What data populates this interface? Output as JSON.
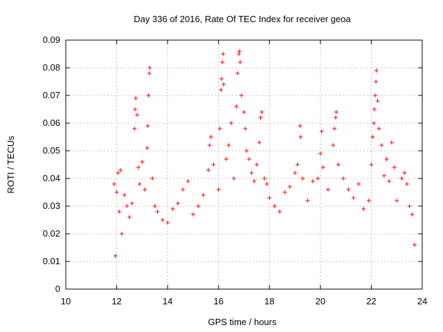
{
  "chart_data": {
    "type": "scatter",
    "title": "Day 336 of 2016, Rate Of TEC Index for receiver geoa",
    "xlabel": "GPS time / hours",
    "ylabel": "ROTI / TECUs",
    "xlim": [
      10,
      24
    ],
    "ylim": [
      0,
      0.09
    ],
    "xticks": [
      "10",
      "12",
      "14",
      "16",
      "18",
      "20",
      "22",
      "24"
    ],
    "yticks": [
      "0",
      "0.01",
      "0.02",
      "0.03",
      "0.04",
      "0.05",
      "0.06",
      "0.07",
      "0.08",
      "0.09"
    ],
    "grid": true,
    "marker": "+",
    "color": "#ff0000",
    "series": [
      {
        "points": [
          [
            11.9,
            0.038
          ],
          [
            11.95,
            0.012
          ],
          [
            12.0,
            0.035
          ],
          [
            12.05,
            0.042
          ],
          [
            12.1,
            0.028
          ],
          [
            12.15,
            0.043
          ],
          [
            12.2,
            0.02
          ],
          [
            12.3,
            0.034
          ],
          [
            12.4,
            0.03
          ],
          [
            12.5,
            0.026
          ],
          [
            12.6,
            0.031
          ],
          [
            12.7,
            0.058
          ],
          [
            12.72,
            0.065
          ],
          [
            12.75,
            0.069
          ],
          [
            12.8,
            0.063
          ],
          [
            12.85,
            0.044
          ],
          [
            12.9,
            0.038
          ],
          [
            13.0,
            0.046
          ],
          [
            13.1,
            0.036
          ],
          [
            13.2,
            0.051
          ],
          [
            13.22,
            0.059
          ],
          [
            13.25,
            0.07
          ],
          [
            13.28,
            0.078
          ],
          [
            13.3,
            0.08
          ],
          [
            13.4,
            0.04
          ],
          [
            13.5,
            0.03
          ],
          [
            13.6,
            0.028
          ],
          [
            13.8,
            0.025
          ],
          [
            14.0,
            0.024
          ],
          [
            14.2,
            0.029
          ],
          [
            14.4,
            0.031
          ],
          [
            14.6,
            0.036
          ],
          [
            14.8,
            0.039
          ],
          [
            15.0,
            0.027
          ],
          [
            15.2,
            0.03
          ],
          [
            15.4,
            0.034
          ],
          [
            15.6,
            0.043
          ],
          [
            15.65,
            0.052
          ],
          [
            15.7,
            0.055
          ],
          [
            15.8,
            0.045
          ],
          [
            16.0,
            0.036
          ],
          [
            16.05,
            0.058
          ],
          [
            16.1,
            0.072
          ],
          [
            16.12,
            0.076
          ],
          [
            16.15,
            0.082
          ],
          [
            16.18,
            0.085
          ],
          [
            16.2,
            0.074
          ],
          [
            16.3,
            0.047
          ],
          [
            16.4,
            0.052
          ],
          [
            16.5,
            0.06
          ],
          [
            16.6,
            0.04
          ],
          [
            16.7,
            0.066
          ],
          [
            16.75,
            0.078
          ],
          [
            16.8,
            0.085
          ],
          [
            16.82,
            0.086
          ],
          [
            16.85,
            0.082
          ],
          [
            16.9,
            0.07
          ],
          [
            17.0,
            0.064
          ],
          [
            17.05,
            0.058
          ],
          [
            17.1,
            0.05
          ],
          [
            17.2,
            0.047
          ],
          [
            17.3,
            0.042
          ],
          [
            17.4,
            0.039
          ],
          [
            17.5,
            0.045
          ],
          [
            17.6,
            0.053
          ],
          [
            17.65,
            0.062
          ],
          [
            17.7,
            0.064
          ],
          [
            17.8,
            0.04
          ],
          [
            17.9,
            0.038
          ],
          [
            18.0,
            0.033
          ],
          [
            18.2,
            0.03
          ],
          [
            18.4,
            0.028
          ],
          [
            18.6,
            0.035
          ],
          [
            18.8,
            0.037
          ],
          [
            19.0,
            0.042
          ],
          [
            19.1,
            0.045
          ],
          [
            19.2,
            0.059
          ],
          [
            19.22,
            0.055
          ],
          [
            19.3,
            0.04
          ],
          [
            19.5,
            0.032
          ],
          [
            19.7,
            0.039
          ],
          [
            19.9,
            0.04
          ],
          [
            20.0,
            0.049
          ],
          [
            20.05,
            0.057
          ],
          [
            20.1,
            0.044
          ],
          [
            20.3,
            0.036
          ],
          [
            20.5,
            0.052
          ],
          [
            20.55,
            0.058
          ],
          [
            20.6,
            0.062
          ],
          [
            20.62,
            0.064
          ],
          [
            20.7,
            0.045
          ],
          [
            20.9,
            0.04
          ],
          [
            21.1,
            0.036
          ],
          [
            21.3,
            0.033
          ],
          [
            21.5,
            0.038
          ],
          [
            21.7,
            0.029
          ],
          [
            21.9,
            0.032
          ],
          [
            22.0,
            0.045
          ],
          [
            22.05,
            0.055
          ],
          [
            22.1,
            0.06
          ],
          [
            22.12,
            0.065
          ],
          [
            22.15,
            0.07
          ],
          [
            22.18,
            0.075
          ],
          [
            22.2,
            0.079
          ],
          [
            22.25,
            0.068
          ],
          [
            22.3,
            0.058
          ],
          [
            22.4,
            0.052
          ],
          [
            22.5,
            0.041
          ],
          [
            22.6,
            0.047
          ],
          [
            22.7,
            0.039
          ],
          [
            22.8,
            0.053
          ],
          [
            22.9,
            0.044
          ],
          [
            23.0,
            0.032
          ],
          [
            23.2,
            0.04
          ],
          [
            23.3,
            0.042
          ],
          [
            23.4,
            0.038
          ],
          [
            23.5,
            0.03
          ],
          [
            23.6,
            0.027
          ],
          [
            23.7,
            0.016
          ]
        ]
      }
    ]
  }
}
